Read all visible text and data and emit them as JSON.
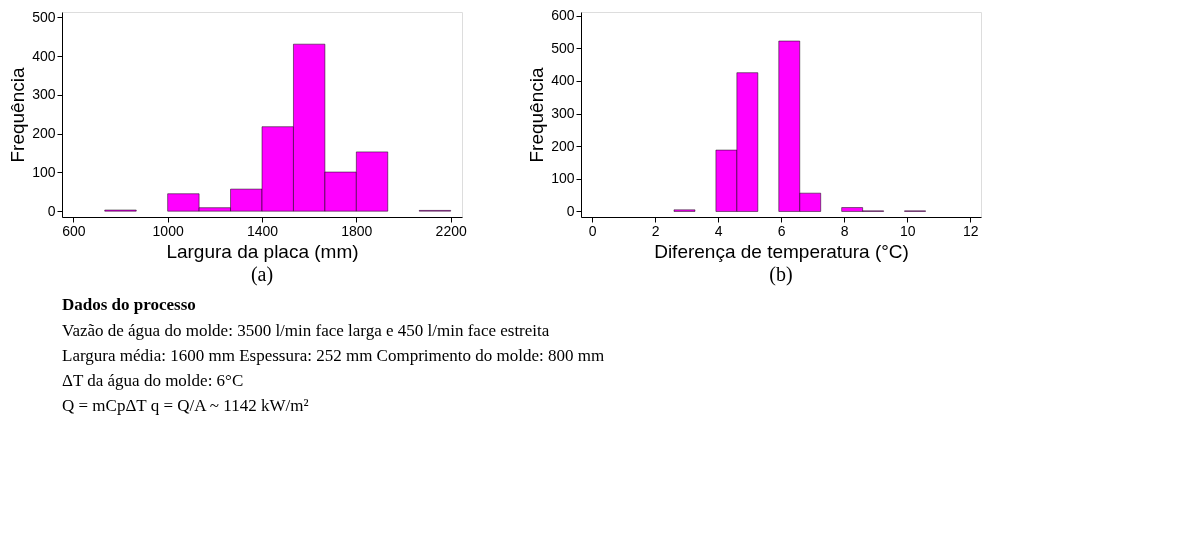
{
  "chart_data": [
    {
      "type": "histogram",
      "xlabel": "Largura da placa (mm)",
      "ylabel": "Frequência",
      "color": "#ff00ff",
      "bins": [
        733.3,
        866.7,
        1000,
        1133.3,
        1266.7,
        1400,
        1533.3,
        1666.7,
        1800,
        1933.3,
        2066.7,
        2200
      ],
      "values": [
        3,
        0,
        45,
        9,
        57,
        218,
        431,
        101,
        153,
        0,
        2
      ],
      "xlim": [
        552,
        2248
      ],
      "xticks": [
        600,
        1000,
        1400,
        1800,
        2200
      ],
      "ylim": [
        -15,
        514
      ],
      "yticks": [
        0,
        100,
        200,
        300,
        400,
        500
      ],
      "grid": false,
      "annotations": [
        "(a)"
      ]
    },
    {
      "type": "histogram",
      "xlabel": "Diferença de temperatura (°C)",
      "ylabel": "Frequência",
      "color": "#ff00ff",
      "bins": [
        2.6,
        3.265,
        3.93,
        4.595,
        5.26,
        5.925,
        6.59,
        7.255,
        7.92,
        8.585,
        9.25,
        9.915,
        10.58
      ],
      "values": [
        5,
        0,
        188,
        425,
        0,
        522,
        56,
        0,
        12,
        2,
        0,
        2
      ],
      "xlim": [
        -0.35,
        12.34
      ],
      "xticks": [
        0,
        2,
        4,
        6,
        8,
        10,
        12
      ],
      "ylim": [
        -17,
        611
      ],
      "yticks": [
        0,
        100,
        200,
        300,
        400,
        500,
        600
      ],
      "grid": false,
      "annotations": [
        "(b)"
      ]
    },
    {
      "type": "other",
      "title": "Dados do processo",
      "annotations": [
        "Vazão de água do molde: 3500 l/min face larga e 450 l/min face estreita",
        "Largura média: 1600 mm Espessura: 252 mm Comprimento do molde: 800 mm",
        "ΔT da água do molde: 6°C",
        "Q = mCpΔT            q = Q/A ~ 1142 kW/m²"
      ]
    }
  ]
}
